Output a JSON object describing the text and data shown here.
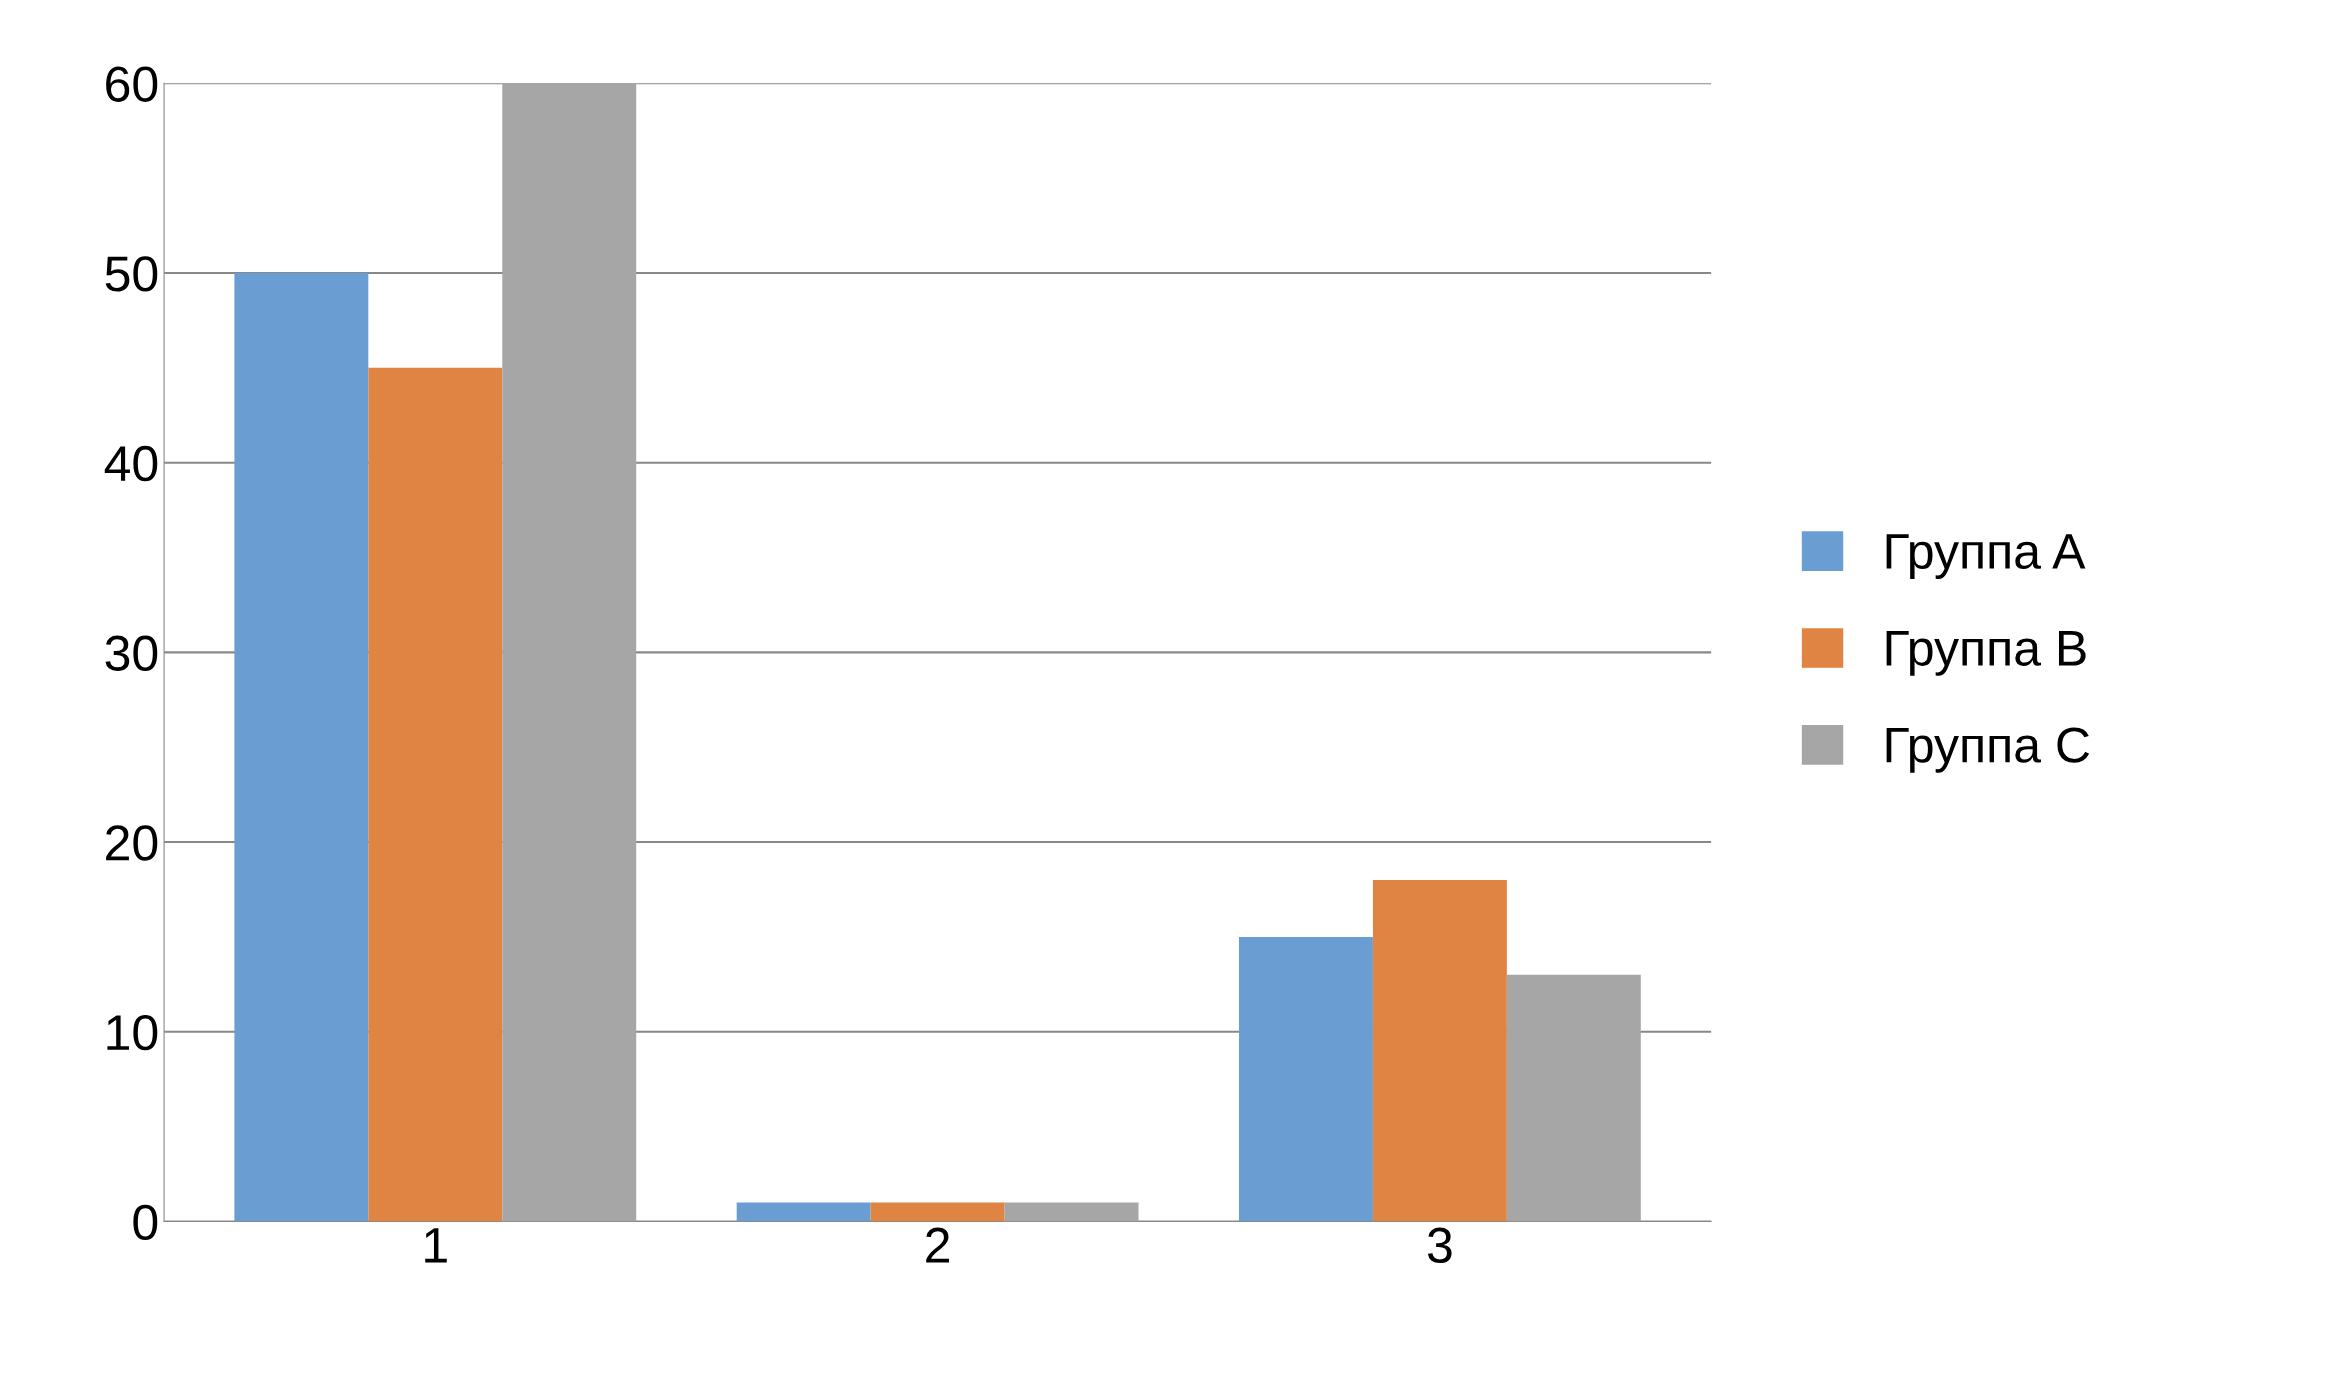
{
  "chart_data": {
    "type": "bar",
    "categories": [
      "1",
      "2",
      "3"
    ],
    "series": [
      {
        "name": "Группа A",
        "color": "#6a9ed3",
        "values": [
          50,
          1,
          15
        ]
      },
      {
        "name": "Группа B",
        "color": "#e08444",
        "values": [
          45,
          1,
          18
        ]
      },
      {
        "name": "Группа C",
        "color": "#a6a6a6",
        "values": [
          60,
          1,
          13
        ]
      }
    ],
    "ylim": [
      0,
      60
    ],
    "yticks": [
      0,
      10,
      20,
      30,
      40,
      50,
      60
    ],
    "grid": "y",
    "legend": "right"
  }
}
